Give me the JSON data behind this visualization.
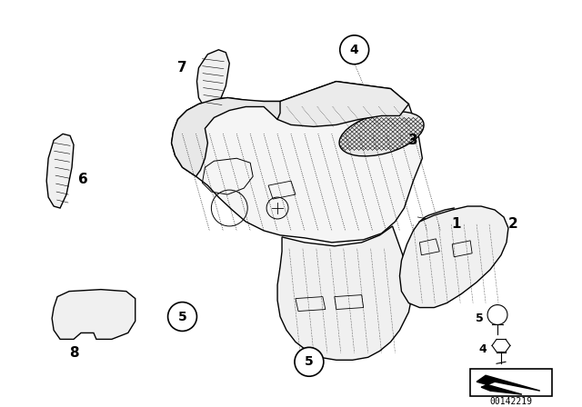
{
  "background_color": "#ffffff",
  "image_number": "00142219",
  "fig_width": 6.4,
  "fig_height": 4.48,
  "dpi": 100
}
